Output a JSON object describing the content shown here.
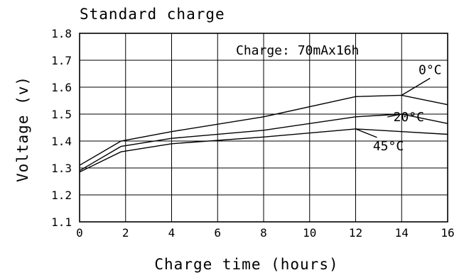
{
  "chart_data": {
    "type": "line",
    "title": "Standard charge",
    "xlabel": "Charge time (hours)",
    "ylabel": "Voltage (v)",
    "xlim": [
      0,
      16
    ],
    "ylim": [
      1.1,
      1.8
    ],
    "x_ticks": [
      "0",
      "2",
      "4",
      "6",
      "8",
      "10",
      "12",
      "14",
      "16"
    ],
    "y_ticks": [
      "1.1",
      "1.2",
      "1.3",
      "1.4",
      "1.5",
      "1.6",
      "1.7",
      "1.8"
    ],
    "grid": true,
    "annotation": "Charge: 70mAx16h",
    "series": [
      {
        "name": "0°C",
        "x": [
          0,
          1.8,
          4,
          8,
          12,
          14,
          16
        ],
        "y": [
          1.31,
          1.4,
          1.435,
          1.49,
          1.565,
          1.57,
          1.535
        ]
      },
      {
        "name": "20°C",
        "x": [
          0,
          1.8,
          4,
          8,
          12,
          14,
          16
        ],
        "y": [
          1.29,
          1.38,
          1.41,
          1.44,
          1.49,
          1.5,
          1.465
        ]
      },
      {
        "name": "45°C",
        "x": [
          0,
          1.8,
          4,
          8,
          12,
          14,
          16
        ],
        "y": [
          1.285,
          1.36,
          1.39,
          1.415,
          1.445,
          1.435,
          1.425
        ]
      }
    ]
  }
}
